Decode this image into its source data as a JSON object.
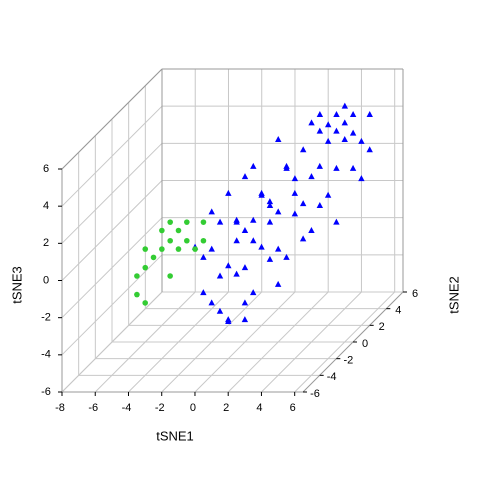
{
  "chart_data": {
    "type": "scatter3d",
    "xlabel": "tSNE1",
    "ylabel": "tSNE2",
    "zlabel": "tSNE3",
    "xlim": [
      -8,
      6.5
    ],
    "ylim": [
      -6,
      6
    ],
    "zlim": [
      -6,
      6
    ],
    "xticks": [
      -8,
      -6,
      -4,
      -2,
      0,
      2,
      4,
      6
    ],
    "yticks": [
      -6,
      -4,
      -2,
      0,
      2,
      4,
      6
    ],
    "zticks": [
      -6,
      -4,
      -2,
      0,
      2,
      4,
      6
    ],
    "grid": true,
    "series": [
      {
        "color": "#0000ff",
        "marker": "triangle",
        "x": [
          0,
          1,
          2,
          -1,
          3,
          -2,
          0,
          1,
          2,
          -1,
          3,
          0,
          1,
          2,
          -2,
          4,
          -1,
          0,
          1,
          2,
          -1,
          3,
          4,
          2,
          3,
          4,
          5,
          3,
          4,
          5,
          2,
          5,
          6,
          4,
          3,
          4,
          1,
          2,
          0,
          -1,
          1,
          2,
          5,
          4,
          5,
          3,
          -2,
          -2,
          0,
          1,
          3,
          4,
          2,
          0,
          -1,
          1,
          2,
          0,
          1,
          3,
          5,
          4,
          3,
          2,
          1,
          0,
          2,
          -2,
          -1,
          0
        ],
        "y": [
          0,
          -1,
          0,
          1,
          1,
          0,
          -2,
          1,
          -2,
          -1,
          -1,
          2,
          0,
          2,
          -1,
          0,
          -3,
          -3,
          -2,
          -3,
          2,
          2,
          2,
          3,
          3,
          4,
          4,
          5,
          5,
          5,
          4,
          3,
          3,
          3,
          4,
          5,
          3,
          1,
          1,
          0,
          2,
          5,
          2,
          1,
          4,
          0,
          1,
          -2,
          -1,
          -3,
          -2,
          -1,
          -1,
          0,
          -2,
          1,
          0,
          3,
          4,
          3,
          1,
          3,
          6,
          6,
          -4,
          -2,
          -4,
          0,
          1,
          1
        ],
        "z": [
          0,
          1,
          -1,
          0,
          1,
          1,
          -1,
          -2,
          0,
          -2,
          -1,
          1,
          2,
          0,
          -1,
          0,
          -2,
          -3,
          -3,
          -2,
          2,
          2,
          1,
          3,
          4,
          4,
          3,
          4,
          4,
          4,
          4,
          2,
          3,
          2,
          3,
          3,
          2,
          3,
          3,
          2,
          4,
          4,
          4,
          3,
          1,
          2,
          0,
          0,
          1,
          -1,
          -2,
          0,
          2,
          -2,
          -3,
          0,
          1,
          0,
          1,
          0,
          0,
          4,
          4,
          3,
          -3,
          -4,
          -3,
          -1,
          -1,
          -1
        ]
      },
      {
        "color": "#33cc33",
        "marker": "circle",
        "x": [
          -5,
          -4,
          -6,
          -5,
          -4,
          -3,
          -6,
          -5,
          -4,
          -6,
          -5,
          -3,
          -4,
          -6,
          -5,
          -4,
          -3,
          -5
        ],
        "y": [
          0,
          0,
          -1,
          -1,
          1,
          1,
          0,
          1,
          -1,
          -1,
          0,
          0,
          1,
          0,
          -2,
          0,
          1,
          1
        ],
        "z": [
          -1,
          -1,
          -2,
          -1,
          0,
          0,
          -2,
          -1,
          -2,
          -3,
          0,
          -1,
          -1,
          -1,
          -3,
          0,
          -1,
          0
        ]
      }
    ]
  }
}
